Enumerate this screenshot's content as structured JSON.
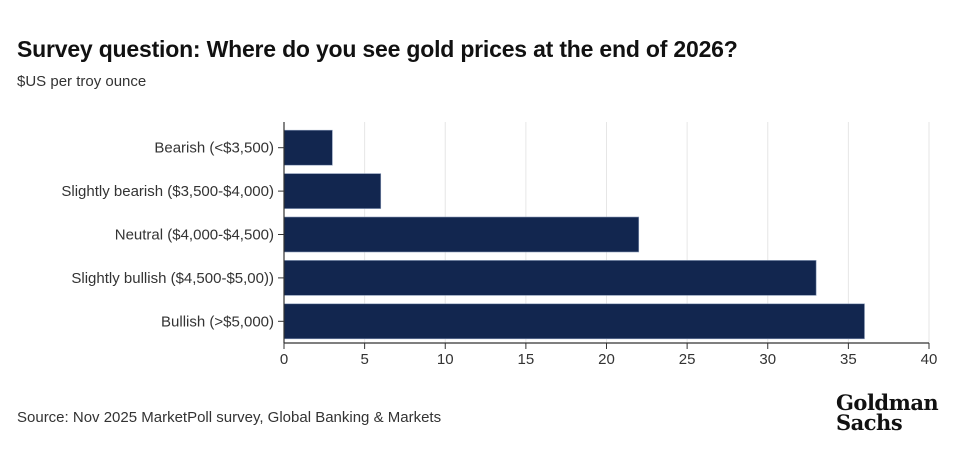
{
  "title": "Survey question: Where do you see gold prices at the end of 2026?",
  "subtitle": "$US per troy ounce",
  "source": "Source: Nov 2025 MarketPoll survey, Global Banking & Markets",
  "logo": "Goldman Sachs",
  "chart_data": {
    "type": "bar",
    "orientation": "horizontal",
    "title": "Survey question: Where do you see gold prices at the end of 2026?",
    "ylabel": "",
    "xlabel": "",
    "categories": [
      "Bearish (<$3,500)",
      "Slightly bearish ($3,500-$4,000)",
      "Neutral ($4,000-$4,500)",
      "Slightly bullish ($4,500-$5,00))",
      "Bullish (>$5,000)"
    ],
    "values": [
      3,
      6,
      22,
      33,
      36
    ],
    "xlim": [
      0,
      40
    ],
    "xticks": [
      0,
      5,
      10,
      15,
      20,
      25,
      30,
      35,
      40
    ],
    "grid": "vertical",
    "bar_color": "#12264f"
  }
}
